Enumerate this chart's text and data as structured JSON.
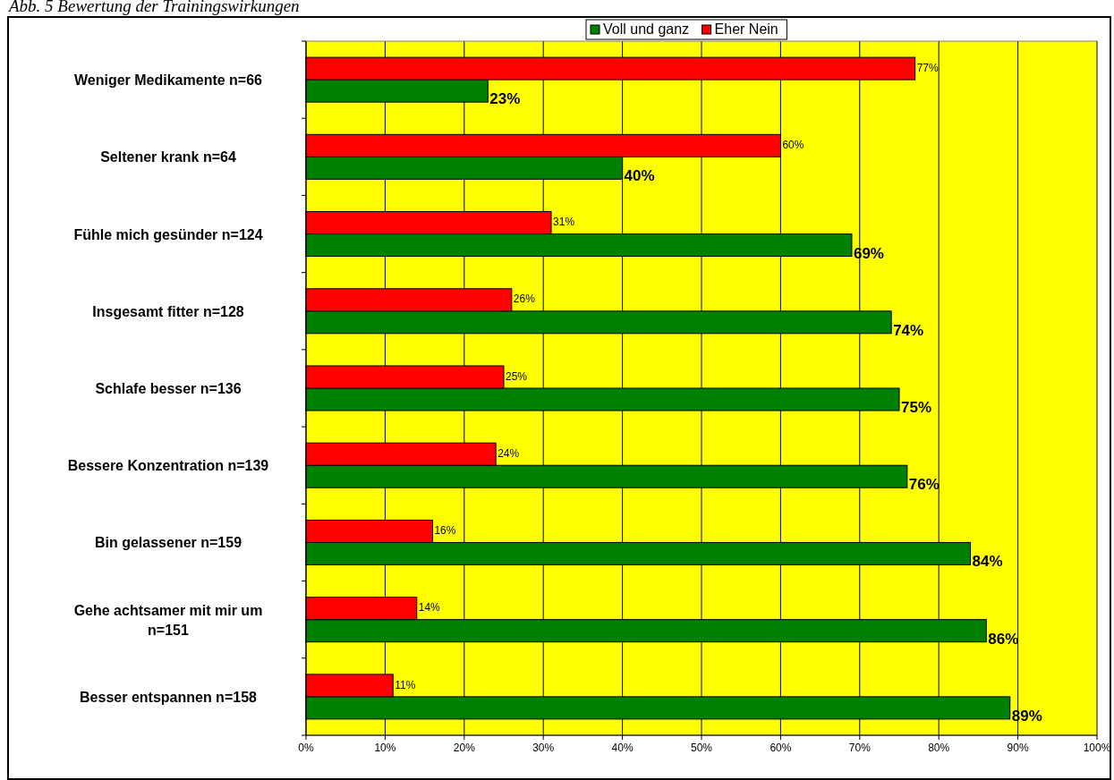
{
  "chart_data": {
    "type": "bar",
    "orientation": "horizontal",
    "title": "Abb. 5 Bewertung der Trainingswirkungen",
    "categories": [
      "Weniger Medikamente n=66",
      "Seltener krank n=64",
      "Fühle mich gesünder n=124",
      "Insgesamt fitter n=128",
      "Schlafe besser n=136",
      "Bessere Konzentration n=139",
      "Bin gelassener n=159",
      "Gehe achtsamer mit mir um n=151",
      "Besser entspannen n=158"
    ],
    "series": [
      {
        "name": "Voll und ganz",
        "color": "#008000",
        "values": [
          23,
          40,
          69,
          74,
          75,
          76,
          84,
          86,
          89
        ],
        "value_labels": [
          "23%",
          "40%",
          "69%",
          "74%",
          "75%",
          "76%",
          "84%",
          "86%",
          "89%"
        ]
      },
      {
        "name": "Eher Nein",
        "color": "#ff0000",
        "values": [
          77,
          60,
          31,
          26,
          25,
          24,
          16,
          14,
          11
        ],
        "value_labels": [
          "77%",
          "60%",
          "31%",
          "26%",
          "25%",
          "24%",
          "16%",
          "14%",
          "11%"
        ]
      }
    ],
    "xlim": [
      0,
      100
    ],
    "xticks": [
      {
        "value": 0,
        "label": "0%"
      },
      {
        "value": 10,
        "label": "10%"
      },
      {
        "value": 20,
        "label": "20%"
      },
      {
        "value": 30,
        "label": "30%"
      },
      {
        "value": 40,
        "label": "40%"
      },
      {
        "value": 50,
        "label": "50%"
      },
      {
        "value": 60,
        "label": "60%"
      },
      {
        "value": 70,
        "label": "70%"
      },
      {
        "value": 80,
        "label": "80%"
      },
      {
        "value": 90,
        "label": "90%"
      },
      {
        "value": 100,
        "label": "100%"
      }
    ],
    "grid": "x",
    "legend": "top"
  }
}
